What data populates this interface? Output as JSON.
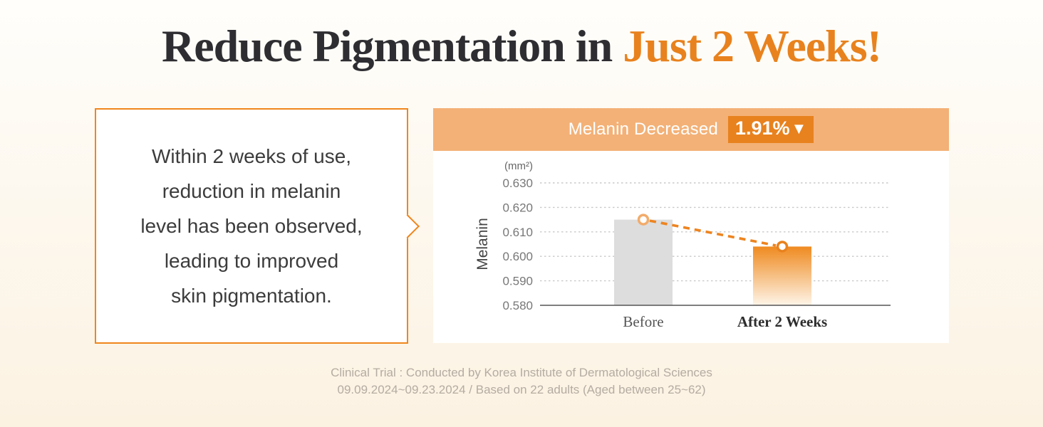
{
  "title": {
    "main": "Reduce Pigmentation in",
    "highlight": " Just 2 Weeks!"
  },
  "callout": {
    "lines": [
      "Within 2 weeks of use,",
      "reduction in melanin",
      "level has been observed,",
      "leading to improved",
      "skin pigmentation."
    ]
  },
  "chart_header": {
    "label": "Melanin Decreased",
    "badge_value": "1.91%",
    "badge_arrow": "▼"
  },
  "chart_data": {
    "type": "bar",
    "categories": [
      "Before",
      "After 2 Weeks"
    ],
    "values": [
      0.615,
      0.604
    ],
    "title": "Melanin Decreased 1.91%",
    "xlabel": "",
    "ylabel": "Melanin",
    "unit_label": "(mm²)",
    "ylim": [
      0.58,
      0.63
    ],
    "yticks": [
      0.63,
      0.62,
      0.61,
      0.6,
      0.59,
      0.58
    ],
    "tick_decimals": 3,
    "grid": "dotted",
    "legend": "none",
    "bar_styles": [
      "solid-gray",
      "orange-gradient"
    ],
    "bar_solid_color": "#DDDDDD",
    "bar_gradient_top": "#EF8A20",
    "bar_gradient_bottom": "#FEF5E9",
    "overlay_line": {
      "style": "dashed",
      "color": "#ED8420",
      "marker_fill": "#FFFFFF",
      "marker_stroke_colors": [
        "#F2AC6B",
        "#E8821E"
      ]
    },
    "category_label_weights": [
      "normal",
      "bold"
    ]
  },
  "footnote": {
    "lines": [
      "Clinical Trial : Conducted by Korea Institute of Dermatological Sciences",
      "09.09.2024~09.23.2024 / Based on  22 adults (Aged between 25~62)"
    ]
  },
  "colors": {
    "accent_orange": "#E8821E",
    "header_bar_orange": "#F3B177",
    "title_dark": "#2E2E32",
    "callout_border": "#F0861C",
    "gridline": "#C9C9C9",
    "axis": "#555555",
    "footnote_gray": "#B5ACA2"
  }
}
